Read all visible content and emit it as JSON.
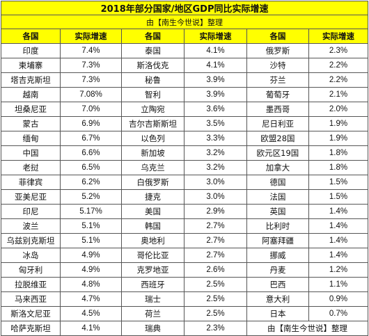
{
  "title": "2018年部分国家/地区GDP同比实际增速",
  "subtitle": "由【南生今世说】整理",
  "headers": {
    "country": "各国",
    "rate": "实际增速"
  },
  "rows": [
    [
      {
        "country": "印度",
        "rate": "7.4%"
      },
      {
        "country": "泰国",
        "rate": "4.1%"
      },
      {
        "country": "俄罗斯",
        "rate": "2.3%"
      }
    ],
    [
      {
        "country": "柬埔寨",
        "rate": "7.3%"
      },
      {
        "country": "斯洛伐克",
        "rate": "4.1%"
      },
      {
        "country": "沙特",
        "rate": "2.2%"
      }
    ],
    [
      {
        "country": "塔吉克斯坦",
        "rate": "7.3%"
      },
      {
        "country": "秘鲁",
        "rate": "3.9%"
      },
      {
        "country": "芬兰",
        "rate": "2.2%"
      }
    ],
    [
      {
        "country": "越南",
        "rate": "7.08%"
      },
      {
        "country": "智利",
        "rate": "3.9%"
      },
      {
        "country": "葡萄牙",
        "rate": "2.1%"
      }
    ],
    [
      {
        "country": "坦桑尼亚",
        "rate": "7.0%"
      },
      {
        "country": "立陶宛",
        "rate": "3.6%"
      },
      {
        "country": "墨西哥",
        "rate": "2.0%"
      }
    ],
    [
      {
        "country": "蒙古",
        "rate": "6.9%"
      },
      {
        "country": "吉尔吉斯斯坦",
        "rate": "3.5%"
      },
      {
        "country": "尼日利亚",
        "rate": "1.9%"
      }
    ],
    [
      {
        "country": "缅甸",
        "rate": "6.7%"
      },
      {
        "country": "以色列",
        "rate": "3.3%"
      },
      {
        "country": "欧盟28国",
        "rate": "1.9%"
      }
    ],
    [
      {
        "country": "中国",
        "rate": "6.6%"
      },
      {
        "country": "新加坡",
        "rate": "3.2%"
      },
      {
        "country": "欧元区19国",
        "rate": "1.8%"
      }
    ],
    [
      {
        "country": "老挝",
        "rate": "6.5%"
      },
      {
        "country": "乌克兰",
        "rate": "3.2%"
      },
      {
        "country": "加拿大",
        "rate": "1.8%"
      }
    ],
    [
      {
        "country": "菲律宾",
        "rate": "6.2%"
      },
      {
        "country": "白俄罗斯",
        "rate": "3.0%"
      },
      {
        "country": "德国",
        "rate": "1.5%"
      }
    ],
    [
      {
        "country": "亚美尼亚",
        "rate": "5.2%"
      },
      {
        "country": "捷克",
        "rate": "3.0%"
      },
      {
        "country": "法国",
        "rate": "1.5%"
      }
    ],
    [
      {
        "country": "印尼",
        "rate": "5.17%"
      },
      {
        "country": "美国",
        "rate": "2.9%"
      },
      {
        "country": "英国",
        "rate": "1.4%"
      }
    ],
    [
      {
        "country": "波兰",
        "rate": "5.1%"
      },
      {
        "country": "韩国",
        "rate": "2.7%"
      },
      {
        "country": "比利时",
        "rate": "1.4%"
      }
    ],
    [
      {
        "country": "乌兹别克斯坦",
        "rate": "5.1%"
      },
      {
        "country": "奥地利",
        "rate": "2.7%"
      },
      {
        "country": "阿塞拜疆",
        "rate": "1.4%"
      }
    ],
    [
      {
        "country": "冰岛",
        "rate": "4.9%"
      },
      {
        "country": "哥伦比亚",
        "rate": "2.7%"
      },
      {
        "country": "挪威",
        "rate": "1.4%"
      }
    ],
    [
      {
        "country": "匈牙利",
        "rate": "4.9%"
      },
      {
        "country": "克罗地亚",
        "rate": "2.6%"
      },
      {
        "country": "丹麦",
        "rate": "1.2%"
      }
    ],
    [
      {
        "country": "拉脱维亚",
        "rate": "4.8%"
      },
      {
        "country": "西班牙",
        "rate": "2.5%"
      },
      {
        "country": "巴西",
        "rate": "1.1%"
      }
    ],
    [
      {
        "country": "马来西亚",
        "rate": "4.7%"
      },
      {
        "country": "瑞士",
        "rate": "2.5%"
      },
      {
        "country": "意大利",
        "rate": "0.9%"
      }
    ],
    [
      {
        "country": "斯洛文尼亚",
        "rate": "4.5%"
      },
      {
        "country": "荷兰",
        "rate": "2.5%"
      },
      {
        "country": "日本",
        "rate": "0.7%"
      }
    ],
    [
      {
        "country": "哈萨克斯坦",
        "rate": "4.1%"
      },
      {
        "country": "瑞典",
        "rate": "2.3%"
      }
    ]
  ],
  "footer_note": "由【南生今世说】整理"
}
